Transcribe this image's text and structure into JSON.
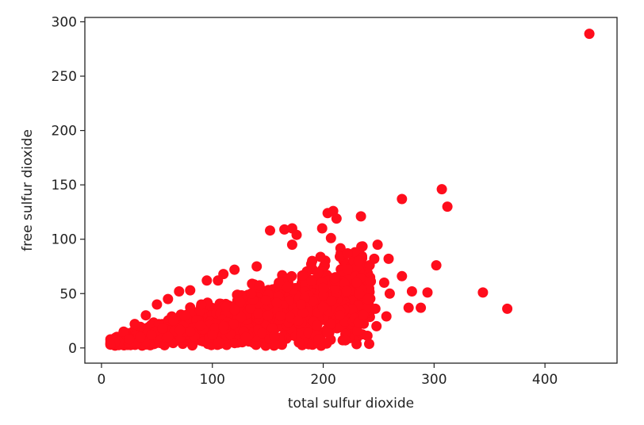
{
  "chart_data": {
    "type": "scatter",
    "title": "",
    "xlabel": "total sulfur dioxide",
    "ylabel": "free sulfur dioxide",
    "xlim": [
      -15,
      465
    ],
    "ylim": [
      -14,
      304
    ],
    "xticks": [
      0,
      100,
      200,
      300,
      400
    ],
    "yticks": [
      0,
      50,
      100,
      150,
      200,
      250,
      300
    ],
    "grid": false,
    "legend": "none",
    "marker_color": "#ff0d1c",
    "series": [
      {
        "points": [
          [
            440,
            289
          ],
          [
            307,
            146
          ],
          [
            312,
            130
          ],
          [
            271,
            137
          ],
          [
            234,
            121
          ],
          [
            209,
            126
          ],
          [
            212,
            119
          ],
          [
            204,
            124
          ],
          [
            152,
            108
          ],
          [
            172,
            110
          ],
          [
            176,
            104
          ],
          [
            165,
            109
          ],
          [
            199,
            110
          ],
          [
            207,
            101
          ],
          [
            249,
            95
          ],
          [
            302,
            76
          ],
          [
            271,
            66
          ],
          [
            280,
            52
          ],
          [
            294,
            51
          ],
          [
            277,
            37
          ],
          [
            288,
            37
          ],
          [
            344,
            51
          ],
          [
            366,
            36
          ],
          [
            257,
            29
          ],
          [
            248,
            20
          ],
          [
            247,
            36
          ],
          [
            259,
            82
          ],
          [
            246,
            82
          ],
          [
            232,
            80
          ],
          [
            215,
            84
          ],
          [
            222,
            87
          ],
          [
            172,
            95
          ],
          [
            190,
            80
          ],
          [
            140,
            75
          ],
          [
            120,
            72
          ],
          [
            105,
            62
          ],
          [
            110,
            68
          ],
          [
            95,
            62
          ],
          [
            60,
            45
          ],
          [
            70,
            52
          ],
          [
            80,
            53
          ],
          [
            50,
            40
          ],
          [
            40,
            30
          ],
          [
            30,
            22
          ],
          [
            20,
            15
          ],
          [
            12,
            5
          ],
          [
            8,
            3
          ],
          [
            220,
            7
          ],
          [
            196,
            8
          ],
          [
            178,
            5
          ],
          [
            156,
            11
          ],
          [
            130,
            10
          ],
          [
            100,
            12
          ],
          [
            80,
            15
          ],
          [
            60,
            10
          ],
          [
            40,
            6
          ],
          [
            240,
            45
          ],
          [
            230,
            60
          ],
          [
            260,
            50
          ],
          [
            255,
            60
          ],
          [
            215,
            30
          ],
          [
            200,
            55
          ],
          [
            180,
            40
          ],
          [
            160,
            60
          ],
          [
            150,
            30
          ],
          [
            135,
            50
          ],
          [
            120,
            35
          ],
          [
            110,
            20
          ],
          [
            90,
            40
          ],
          [
            75,
            30
          ],
          [
            65,
            25
          ],
          [
            55,
            18
          ],
          [
            45,
            12
          ],
          [
            35,
            10
          ],
          [
            25,
            8
          ]
        ]
      }
    ]
  }
}
